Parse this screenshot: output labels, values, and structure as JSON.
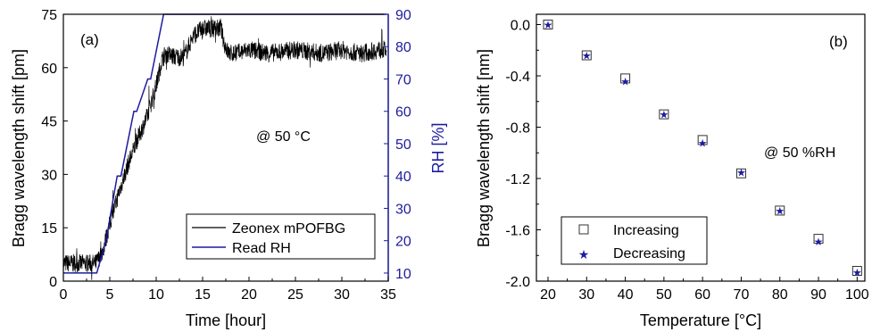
{
  "chart_data": [
    {
      "type": "line",
      "panel_label": "(a)",
      "annotation": "@ 50 °C",
      "xlabel": "Time [hour]",
      "ylabel": "Bragg wavelength shift [pm]",
      "y2label": "RH [%]",
      "xlim": [
        0,
        35
      ],
      "ylim": [
        0,
        75
      ],
      "y2lim": [
        7.5,
        90
      ],
      "xticks": [
        "0",
        "5",
        "10",
        "15",
        "20",
        "25",
        "30",
        "35"
      ],
      "yticks": [
        "0",
        "15",
        "30",
        "45",
        "60",
        "75"
      ],
      "y2ticks": [
        "10",
        "20",
        "30",
        "40",
        "50",
        "60",
        "70",
        "80",
        "90"
      ],
      "legend_position": "bottom-right",
      "series": [
        {
          "name": "Zeonex mPOFBG",
          "axis": "left",
          "color": "#000000",
          "x": [
            0,
            3.5,
            4.2,
            5,
            6,
            7,
            8,
            9,
            10,
            10.6,
            11,
            12,
            13,
            14,
            15,
            16,
            17,
            17.3,
            17.8,
            18.5,
            20,
            22,
            25,
            28,
            30,
            32,
            34,
            34.8
          ],
          "y": [
            5,
            5,
            8,
            16,
            25,
            33,
            40,
            46,
            55,
            62,
            64,
            63,
            63,
            69,
            71,
            71,
            71,
            67,
            64,
            64,
            65,
            64,
            65,
            64,
            65,
            64,
            65,
            65
          ],
          "noise": 2.6
        },
        {
          "name": "Read RH",
          "axis": "right",
          "color": "#1c1c9e",
          "x": [
            0,
            3.6,
            4.6,
            5.8,
            6.2,
            7.6,
            7.9,
            9.1,
            9.4,
            10.8,
            34.8
          ],
          "y": [
            10,
            10,
            20,
            40,
            40,
            60,
            60,
            70,
            70,
            90,
            90
          ]
        }
      ]
    },
    {
      "type": "scatter",
      "panel_label": "(b)",
      "annotation": "@ 50 %RH",
      "xlabel": "Temperature [°C]",
      "ylabel": "Bragg wavelength shift [nm]",
      "xlim": [
        17,
        102
      ],
      "ylim": [
        -2.0,
        0.08
      ],
      "xticks": [
        "20",
        "30",
        "40",
        "50",
        "60",
        "70",
        "80",
        "90",
        "100"
      ],
      "yticks": [
        "0.0",
        "-0.4",
        "-0.8",
        "-1.2",
        "-1.6",
        "-2.0"
      ],
      "legend_position": "bottom-left",
      "series": [
        {
          "name": "Increasing",
          "marker": "open-square",
          "color": "#333333",
          "x": [
            20,
            30,
            40,
            50,
            60,
            70,
            80,
            90,
            100
          ],
          "y": [
            0.0,
            -0.24,
            -0.42,
            -0.7,
            -0.9,
            -1.16,
            -1.45,
            -1.67,
            -1.92
          ]
        },
        {
          "name": "Decreasing",
          "marker": "star",
          "color": "#1c1c9e",
          "x": [
            20,
            30,
            40,
            50,
            60,
            70,
            80,
            90,
            100
          ],
          "y": [
            0.0,
            -0.24,
            -0.44,
            -0.7,
            -0.92,
            -1.15,
            -1.45,
            -1.69,
            -1.93
          ]
        }
      ]
    }
  ]
}
